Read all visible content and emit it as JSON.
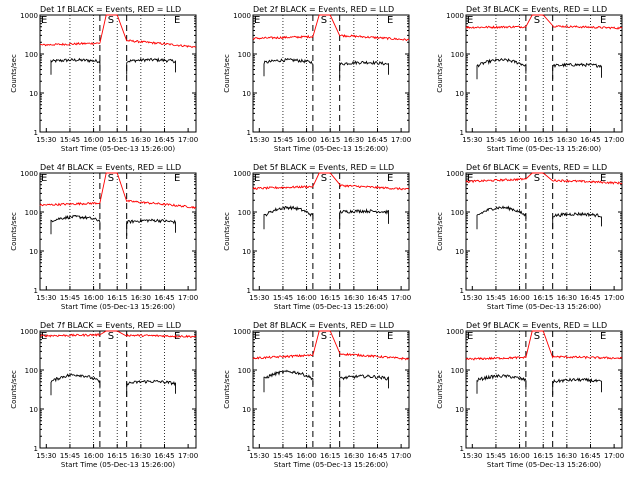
{
  "page": {
    "background": "#ffffff"
  },
  "style": {
    "events_color": "#000000",
    "lld_color": "#ff0000",
    "axis_color": "#000000"
  },
  "shared": {
    "ylabel": "Counts/sec",
    "xlabel": "Start Time (05-Dec-13 15:26:00)",
    "x_ticks": [
      "15:30",
      "15:45",
      "16:00",
      "16:15",
      "16:30",
      "16:45",
      "17:00"
    ],
    "y_ticks": [
      "1",
      "10",
      "100",
      "1000"
    ],
    "markers": {
      "E": "E",
      "S": "S"
    }
  },
  "chart_data": [
    {
      "type": "line",
      "title": "Det 1f BLACK = Events, RED = LLD",
      "ylim": [
        1,
        1000
      ],
      "yscale": "log",
      "xlim": [
        "15:26",
        "17:05"
      ],
      "series": [
        {
          "name": "Events",
          "color": "#000000",
          "segments": [
            {
              "x": [
                "15:33",
                "16:04"
              ],
              "y": [
                65,
                70
              ]
            },
            {
              "x": [
                "16:21",
                "16:52"
              ],
              "y": [
                65,
                75
              ]
            }
          ]
        },
        {
          "name": "LLD",
          "color": "#ff0000",
          "x": [
            "15:26",
            "16:04",
            "16:08",
            "16:15",
            "16:21",
            "17:05"
          ],
          "y": [
            170,
            190,
            1000,
            1000,
            220,
            150
          ]
        }
      ]
    },
    {
      "type": "line",
      "title": "Det 2f BLACK = Events, RED = LLD",
      "ylim": [
        1,
        1000
      ],
      "yscale": "log",
      "xlim": [
        "15:26",
        "17:05"
      ],
      "series": [
        {
          "name": "Events",
          "color": "#000000",
          "segments": [
            {
              "x": [
                "15:33",
                "16:04"
              ],
              "y": [
                60,
                70
              ]
            },
            {
              "x": [
                "16:21",
                "16:52"
              ],
              "y": [
                55,
                65
              ]
            }
          ]
        },
        {
          "name": "LLD",
          "color": "#ff0000",
          "x": [
            "15:26",
            "16:04",
            "16:08",
            "16:15",
            "16:21",
            "17:05"
          ],
          "y": [
            250,
            280,
            1000,
            1000,
            300,
            230
          ]
        }
      ]
    },
    {
      "type": "line",
      "title": "Det 3f BLACK = Events, RED = LLD",
      "ylim": [
        1,
        1000
      ],
      "yscale": "log",
      "xlim": [
        "15:26",
        "17:05"
      ],
      "series": [
        {
          "name": "Events",
          "color": "#000000",
          "segments": [
            {
              "x": [
                "15:33",
                "16:04"
              ],
              "y": [
                50,
                70
              ]
            },
            {
              "x": [
                "16:21",
                "16:52"
              ],
              "y": [
                50,
                55
              ]
            }
          ]
        },
        {
          "name": "LLD",
          "color": "#ff0000",
          "x": [
            "15:26",
            "16:04",
            "16:08",
            "16:15",
            "16:21",
            "17:05"
          ],
          "y": [
            480,
            500,
            1000,
            1000,
            520,
            460
          ]
        }
      ]
    },
    {
      "type": "line",
      "title": "Det 4f BLACK = Events, RED = LLD",
      "ylim": [
        1,
        1000
      ],
      "yscale": "log",
      "xlim": [
        "15:26",
        "17:05"
      ],
      "series": [
        {
          "name": "Events",
          "color": "#000000",
          "segments": [
            {
              "x": [
                "15:33",
                "16:04"
              ],
              "y": [
                60,
                75
              ]
            },
            {
              "x": [
                "16:21",
                "16:52"
              ],
              "y": [
                55,
                65
              ]
            }
          ]
        },
        {
          "name": "LLD",
          "color": "#ff0000",
          "x": [
            "15:26",
            "16:04",
            "16:08",
            "16:15",
            "16:21",
            "17:05"
          ],
          "y": [
            150,
            170,
            1000,
            1000,
            190,
            130
          ]
        }
      ]
    },
    {
      "type": "line",
      "title": "Det 5f BLACK = Events, RED = LLD",
      "ylim": [
        1,
        1000
      ],
      "yscale": "log",
      "xlim": [
        "15:26",
        "17:05"
      ],
      "series": [
        {
          "name": "Events",
          "color": "#000000",
          "segments": [
            {
              "x": [
                "15:33",
                "16:04"
              ],
              "y": [
                80,
                130
              ]
            },
            {
              "x": [
                "16:21",
                "16:52"
              ],
              "y": [
                100,
                110
              ]
            }
          ]
        },
        {
          "name": "LLD",
          "color": "#ff0000",
          "x": [
            "15:26",
            "16:04",
            "16:08",
            "16:15",
            "16:21",
            "17:05"
          ],
          "y": [
            400,
            450,
            1000,
            1000,
            480,
            380
          ]
        }
      ]
    },
    {
      "type": "line",
      "title": "Det 6f BLACK = Events, RED = LLD",
      "ylim": [
        1,
        1000
      ],
      "yscale": "log",
      "xlim": [
        "15:26",
        "17:05"
      ],
      "series": [
        {
          "name": "Events",
          "color": "#000000",
          "segments": [
            {
              "x": [
                "15:33",
                "16:04"
              ],
              "y": [
                80,
                130
              ]
            },
            {
              "x": [
                "16:21",
                "16:52"
              ],
              "y": [
                80,
                95
              ]
            }
          ]
        },
        {
          "name": "LLD",
          "color": "#ff0000",
          "x": [
            "15:26",
            "16:04",
            "16:08",
            "16:15",
            "16:21",
            "17:05"
          ],
          "y": [
            600,
            700,
            1000,
            1000,
            650,
            550
          ]
        }
      ]
    },
    {
      "type": "line",
      "title": "Det 7f BLACK = Events, RED = LLD",
      "ylim": [
        1,
        1000
      ],
      "yscale": "log",
      "xlim": [
        "15:26",
        "17:05"
      ],
      "series": [
        {
          "name": "Events",
          "color": "#000000",
          "segments": [
            {
              "x": [
                "15:33",
                "16:04"
              ],
              "y": [
                50,
                75
              ]
            },
            {
              "x": [
                "16:21",
                "16:52"
              ],
              "y": [
                45,
                55
              ]
            }
          ]
        },
        {
          "name": "LLD",
          "color": "#ff0000",
          "x": [
            "15:26",
            "16:04",
            "16:08",
            "16:15",
            "16:21",
            "17:05"
          ],
          "y": [
            750,
            800,
            1000,
            1000,
            780,
            720
          ]
        }
      ]
    },
    {
      "type": "line",
      "title": "Det 8f BLACK = Events, RED = LLD",
      "ylim": [
        1,
        1000
      ],
      "yscale": "log",
      "xlim": [
        "15:26",
        "17:05"
      ],
      "series": [
        {
          "name": "Events",
          "color": "#000000",
          "segments": [
            {
              "x": [
                "15:33",
                "16:04"
              ],
              "y": [
                60,
                90
              ]
            },
            {
              "x": [
                "16:21",
                "16:52"
              ],
              "y": [
                60,
                75
              ]
            }
          ]
        },
        {
          "name": "LLD",
          "color": "#ff0000",
          "x": [
            "15:26",
            "16:04",
            "16:08",
            "16:15",
            "16:21",
            "17:05"
          ],
          "y": [
            200,
            240,
            1000,
            1000,
            260,
            190
          ]
        }
      ]
    },
    {
      "type": "line",
      "title": "Det 9f BLACK = Events, RED = LLD",
      "ylim": [
        1,
        1000
      ],
      "yscale": "log",
      "xlim": [
        "15:26",
        "17:05"
      ],
      "series": [
        {
          "name": "Events",
          "color": "#000000",
          "segments": [
            {
              "x": [
                "15:33",
                "16:04"
              ],
              "y": [
                55,
                70
              ]
            },
            {
              "x": [
                "16:21",
                "16:52"
              ],
              "y": [
                50,
                60
              ]
            }
          ]
        },
        {
          "name": "LLD",
          "color": "#ff0000",
          "x": [
            "15:26",
            "16:04",
            "16:08",
            "16:15",
            "16:21",
            "17:05"
          ],
          "y": [
            190,
            210,
            1000,
            1000,
            220,
            200
          ]
        }
      ]
    }
  ]
}
